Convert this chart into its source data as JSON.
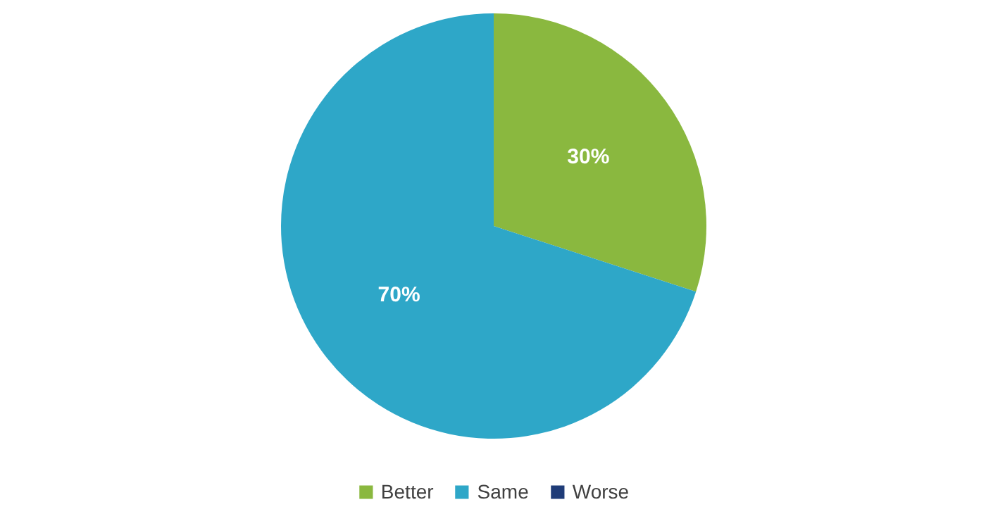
{
  "chart_data": {
    "type": "pie",
    "categories": [
      "Better",
      "Same",
      "Worse"
    ],
    "values": [
      30,
      70,
      0
    ],
    "colors": [
      "#8ab83f",
      "#2ea7c8",
      "#1f3c78"
    ],
    "value_labels": [
      "30%",
      "70%",
      null
    ],
    "legend": "bottom"
  }
}
